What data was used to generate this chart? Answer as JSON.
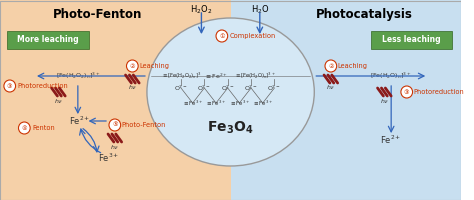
{
  "bg_left_color": "#f5d0a8",
  "bg_right_color": "#c8dff0",
  "ellipse_color": "#d5e8f5",
  "ellipse_edge_color": "#999999",
  "green_box_color": "#5a9e4a",
  "title_left": "Photo-Fenton",
  "title_right": "Photocatalysis",
  "more_leaching": "More leaching",
  "less_leaching": "Less leaching",
  "red_color": "#cc3300",
  "blue_color": "#3366bb",
  "dark_red": "#8b1a1a",
  "text_color": "#222222",
  "gray_line": "#666666"
}
